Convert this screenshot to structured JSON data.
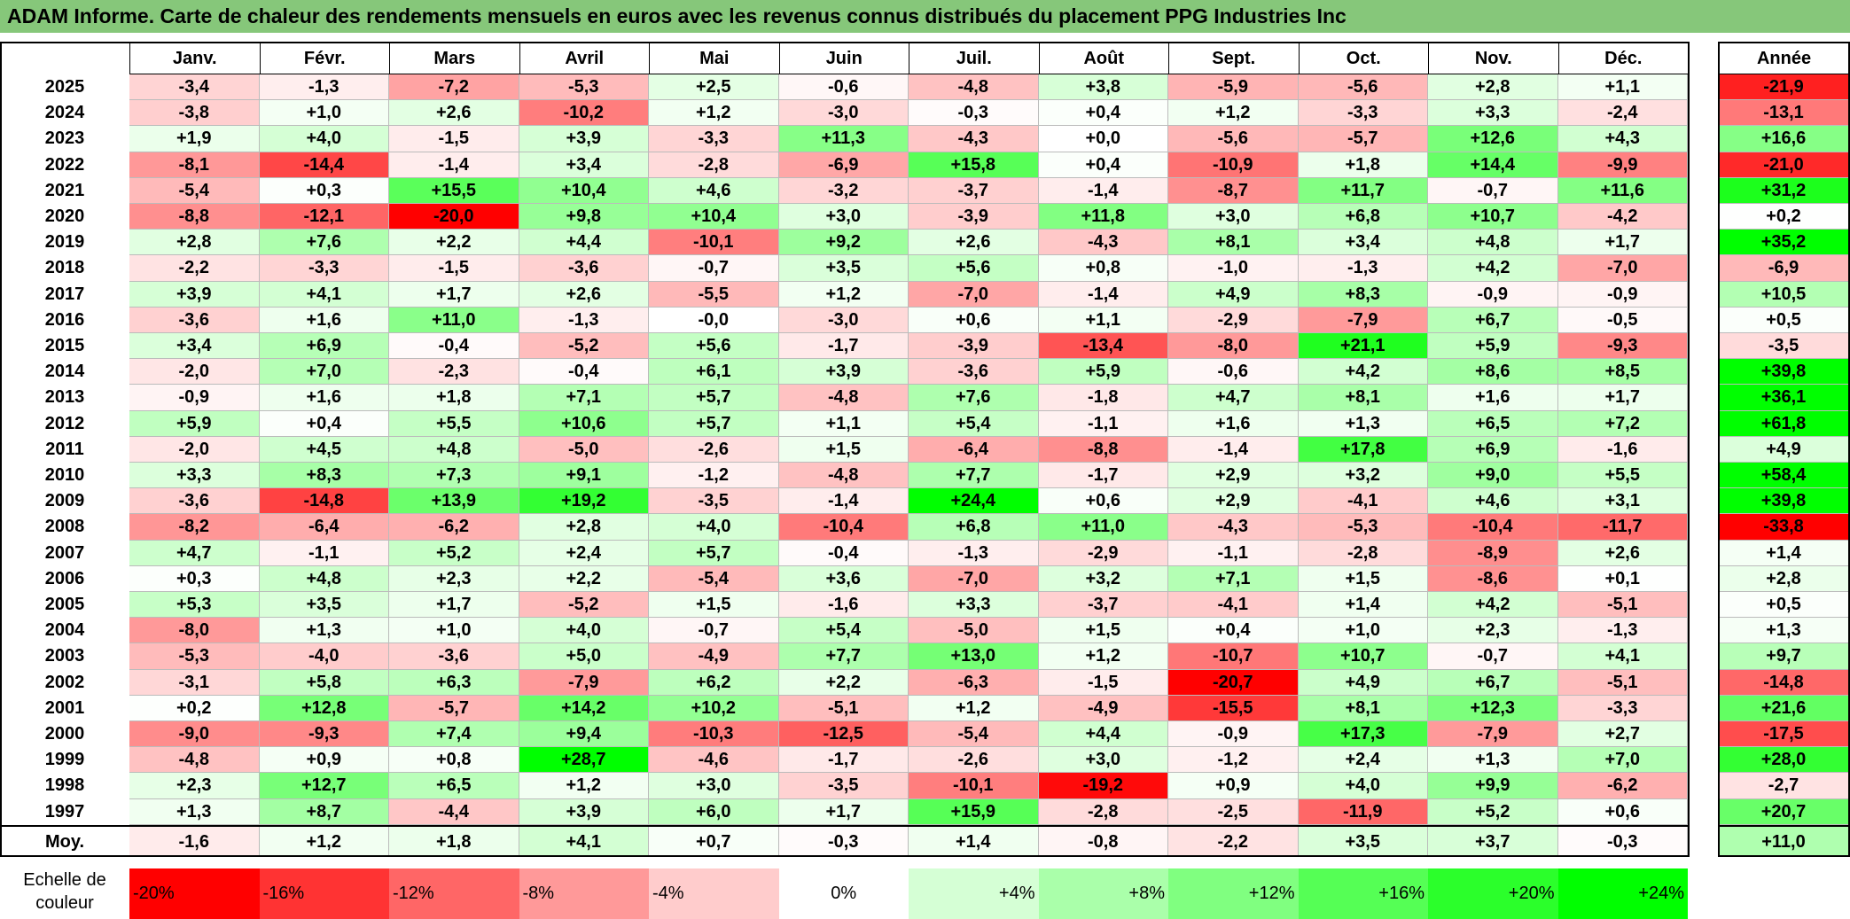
{
  "title": "ADAM Informe. Carte de chaleur des rendements mensuels en euros avec les revenus connus distribués du placement PPG Industries Inc",
  "chart_data": {
    "type": "heatmap",
    "title": "ADAM Informe. Carte de chaleur des rendements mensuels en euros avec les revenus connus distribués du placement PPG Industries Inc",
    "columns": [
      "Janv.",
      "Févr.",
      "Mars",
      "Avril",
      "Mai",
      "Juin",
      "Juil.",
      "Août",
      "Sept.",
      "Oct.",
      "Nov.",
      "Déc."
    ],
    "annual_header": "Année",
    "rows": [
      {
        "year": "2025",
        "values": [
          "-3,4",
          "-1,3",
          "-7,2",
          "-5,3",
          "+2,5",
          "-0,6",
          "-4,8",
          "+3,8",
          "-5,9",
          "-5,6",
          "+2,8",
          "+1,1"
        ],
        "annual": "-21,9"
      },
      {
        "year": "2024",
        "values": [
          "-3,8",
          "+1,0",
          "+2,6",
          "-10,2",
          "+1,2",
          "-3,0",
          "-0,3",
          "+0,4",
          "+1,2",
          "-3,3",
          "+3,3",
          "-2,4"
        ],
        "annual": "-13,1"
      },
      {
        "year": "2023",
        "values": [
          "+1,9",
          "+4,0",
          "-1,5",
          "+3,9",
          "-3,3",
          "+11,3",
          "-4,3",
          "+0,0",
          "-5,6",
          "-5,7",
          "+12,6",
          "+4,3"
        ],
        "annual": "+16,6"
      },
      {
        "year": "2022",
        "values": [
          "-8,1",
          "-14,4",
          "-1,4",
          "+3,4",
          "-2,8",
          "-6,9",
          "+15,8",
          "+0,4",
          "-10,9",
          "+1,8",
          "+14,4",
          "-9,9"
        ],
        "annual": "-21,0"
      },
      {
        "year": "2021",
        "values": [
          "-5,4",
          "+0,3",
          "+15,5",
          "+10,4",
          "+4,6",
          "-3,2",
          "-3,7",
          "-1,4",
          "-8,7",
          "+11,7",
          "-0,7",
          "+11,6"
        ],
        "annual": "+31,2"
      },
      {
        "year": "2020",
        "values": [
          "-8,8",
          "-12,1",
          "-20,0",
          "+9,8",
          "+10,4",
          "+3,0",
          "-3,9",
          "+11,8",
          "+3,0",
          "+6,8",
          "+10,7",
          "-4,2"
        ],
        "annual": "+0,2"
      },
      {
        "year": "2019",
        "values": [
          "+2,8",
          "+7,6",
          "+2,2",
          "+4,4",
          "-10,1",
          "+9,2",
          "+2,6",
          "-4,3",
          "+8,1",
          "+3,4",
          "+4,8",
          "+1,7"
        ],
        "annual": "+35,2"
      },
      {
        "year": "2018",
        "values": [
          "-2,2",
          "-3,3",
          "-1,5",
          "-3,6",
          "-0,7",
          "+3,5",
          "+5,6",
          "+0,8",
          "-1,0",
          "-1,3",
          "+4,2",
          "-7,0"
        ],
        "annual": "-6,9"
      },
      {
        "year": "2017",
        "values": [
          "+3,9",
          "+4,1",
          "+1,7",
          "+2,6",
          "-5,5",
          "+1,2",
          "-7,0",
          "-1,4",
          "+4,9",
          "+8,3",
          "-0,9",
          "-0,9"
        ],
        "annual": "+10,5"
      },
      {
        "year": "2016",
        "values": [
          "-3,6",
          "+1,6",
          "+11,0",
          "-1,3",
          "-0,0",
          "-3,0",
          "+0,6",
          "+1,1",
          "-2,9",
          "-7,9",
          "+6,7",
          "-0,5"
        ],
        "annual": "+0,5"
      },
      {
        "year": "2015",
        "values": [
          "+3,4",
          "+6,9",
          "-0,4",
          "-5,2",
          "+5,6",
          "-1,7",
          "-3,9",
          "-13,4",
          "-8,0",
          "+21,1",
          "+5,9",
          "-9,3"
        ],
        "annual": "-3,5"
      },
      {
        "year": "2014",
        "values": [
          "-2,0",
          "+7,0",
          "-2,3",
          "-0,4",
          "+6,1",
          "+3,9",
          "-3,6",
          "+5,9",
          "-0,6",
          "+4,2",
          "+8,6",
          "+8,5"
        ],
        "annual": "+39,8"
      },
      {
        "year": "2013",
        "values": [
          "-0,9",
          "+1,6",
          "+1,8",
          "+7,1",
          "+5,7",
          "-4,8",
          "+7,6",
          "-1,8",
          "+4,7",
          "+8,1",
          "+1,6",
          "+1,7"
        ],
        "annual": "+36,1"
      },
      {
        "year": "2012",
        "values": [
          "+5,9",
          "+0,4",
          "+5,5",
          "+10,6",
          "+5,7",
          "+1,1",
          "+5,4",
          "-1,1",
          "+1,6",
          "+1,3",
          "+6,5",
          "+7,2"
        ],
        "annual": "+61,8"
      },
      {
        "year": "2011",
        "values": [
          "-2,0",
          "+4,5",
          "+4,8",
          "-5,0",
          "-2,6",
          "+1,5",
          "-6,4",
          "-8,8",
          "-1,4",
          "+17,8",
          "+6,9",
          "-1,6"
        ],
        "annual": "+4,9"
      },
      {
        "year": "2010",
        "values": [
          "+3,3",
          "+8,3",
          "+7,3",
          "+9,1",
          "-1,2",
          "-4,8",
          "+7,7",
          "-1,7",
          "+2,9",
          "+3,2",
          "+9,0",
          "+5,5"
        ],
        "annual": "+58,4"
      },
      {
        "year": "2009",
        "values": [
          "-3,6",
          "-14,8",
          "+13,9",
          "+19,2",
          "-3,5",
          "-1,4",
          "+24,4",
          "+0,6",
          "+2,9",
          "-4,1",
          "+4,6",
          "+3,1"
        ],
        "annual": "+39,8"
      },
      {
        "year": "2008",
        "values": [
          "-8,2",
          "-6,4",
          "-6,2",
          "+2,8",
          "+4,0",
          "-10,4",
          "+6,8",
          "+11,0",
          "-4,3",
          "-5,3",
          "-10,4",
          "-11,7"
        ],
        "annual": "-33,8"
      },
      {
        "year": "2007",
        "values": [
          "+4,7",
          "-1,1",
          "+5,2",
          "+2,4",
          "+5,7",
          "-0,4",
          "-1,3",
          "-2,9",
          "-1,1",
          "-2,8",
          "-8,9",
          "+2,6"
        ],
        "annual": "+1,4"
      },
      {
        "year": "2006",
        "values": [
          "+0,3",
          "+4,8",
          "+2,3",
          "+2,2",
          "-5,4",
          "+3,6",
          "-7,0",
          "+3,2",
          "+7,1",
          "+1,5",
          "-8,6",
          "+0,1"
        ],
        "annual": "+2,8"
      },
      {
        "year": "2005",
        "values": [
          "+5,3",
          "+3,5",
          "+1,7",
          "-5,2",
          "+1,5",
          "-1,6",
          "+3,3",
          "-3,7",
          "-4,1",
          "+1,4",
          "+4,2",
          "-5,1"
        ],
        "annual": "+0,5"
      },
      {
        "year": "2004",
        "values": [
          "-8,0",
          "+1,3",
          "+1,0",
          "+4,0",
          "-0,7",
          "+5,4",
          "-5,0",
          "+1,5",
          "+0,4",
          "+1,0",
          "+2,3",
          "-1,3"
        ],
        "annual": "+1,3"
      },
      {
        "year": "2003",
        "values": [
          "-5,3",
          "-4,0",
          "-3,6",
          "+5,0",
          "-4,9",
          "+7,7",
          "+13,0",
          "+1,2",
          "-10,7",
          "+10,7",
          "-0,7",
          "+4,1"
        ],
        "annual": "+9,7"
      },
      {
        "year": "2002",
        "values": [
          "-3,1",
          "+5,8",
          "+6,3",
          "-7,9",
          "+6,2",
          "+2,2",
          "-6,3",
          "-1,5",
          "-20,7",
          "+4,9",
          "+6,7",
          "-5,1"
        ],
        "annual": "-14,8"
      },
      {
        "year": "2001",
        "values": [
          "+0,2",
          "+12,8",
          "-5,7",
          "+14,2",
          "+10,2",
          "-5,1",
          "+1,2",
          "-4,9",
          "-15,5",
          "+8,1",
          "+12,3",
          "-3,3"
        ],
        "annual": "+21,6"
      },
      {
        "year": "2000",
        "values": [
          "-9,0",
          "-9,3",
          "+7,4",
          "+9,4",
          "-10,3",
          "-12,5",
          "-5,4",
          "+4,4",
          "-0,9",
          "+17,3",
          "-7,9",
          "+2,7"
        ],
        "annual": "-17,5"
      },
      {
        "year": "1999",
        "values": [
          "-4,8",
          "+0,9",
          "+0,8",
          "+28,7",
          "-4,6",
          "-1,7",
          "-2,6",
          "+3,0",
          "-1,2",
          "+2,4",
          "+1,3",
          "+7,0"
        ],
        "annual": "+28,0"
      },
      {
        "year": "1998",
        "values": [
          "+2,3",
          "+12,7",
          "+6,5",
          "+1,2",
          "+3,0",
          "-3,5",
          "-10,1",
          "-19,2",
          "+0,9",
          "+4,0",
          "+9,9",
          "-6,2"
        ],
        "annual": "-2,7"
      },
      {
        "year": "1997",
        "values": [
          "+1,3",
          "+8,7",
          "-4,4",
          "+3,9",
          "+6,0",
          "+1,7",
          "+15,9",
          "-2,8",
          "-2,5",
          "-11,9",
          "+5,2",
          "+0,6"
        ],
        "annual": "+20,7"
      }
    ],
    "average": {
      "label": "Moy.",
      "values": [
        "-1,6",
        "+1,2",
        "+1,8",
        "+4,1",
        "+0,7",
        "-0,3",
        "+1,4",
        "-0,8",
        "-2,2",
        "+3,5",
        "+3,7",
        "-0,3"
      ],
      "annual": "+11,0"
    },
    "scale": {
      "label": "Echelle de couleur",
      "steps": [
        {
          "text": "-20%",
          "value": -20
        },
        {
          "text": "-16%",
          "value": -16
        },
        {
          "text": "-12%",
          "value": -12
        },
        {
          "text": "-8%",
          "value": -8
        },
        {
          "text": "-4%",
          "value": -4
        },
        {
          "text": "0%",
          "value": 0
        },
        {
          "text": "+4%",
          "value": 4
        },
        {
          "text": "+8%",
          "value": 8
        },
        {
          "text": "+12%",
          "value": 12
        },
        {
          "text": "+16%",
          "value": 16
        },
        {
          "text": "+20%",
          "value": 20
        },
        {
          "text": "+24%",
          "value": 24
        }
      ]
    },
    "colors": {
      "negative": "#ff0000",
      "neutral": "#ffffff",
      "positive": "#00ff00",
      "title_bar": "#86c77a"
    }
  }
}
